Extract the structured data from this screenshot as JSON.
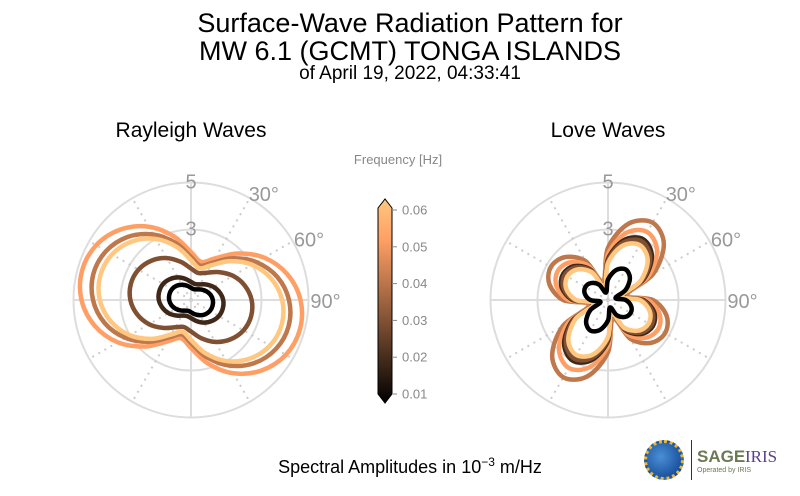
{
  "header": {
    "title_line1": "Surface-Wave Radiation Pattern for",
    "title_line2": "MW 6.1 (GCMT) TONGA ISLANDS",
    "title_line3": "of April 19, 2022, 04:33:41"
  },
  "footer": {
    "label_prefix": "Spectral Amplitudes in 10",
    "label_exp": "−3",
    "label_suffix": " m/Hz"
  },
  "logos": {
    "nsf": "NSF",
    "sage": "SAGE",
    "iris": "IRIS",
    "operated": "Operated by IRIS"
  },
  "colorbar": {
    "title": "Frequency [Hz]",
    "ticks": [
      "0.06",
      "0.05",
      "0.04",
      "0.03",
      "0.02",
      "0.01"
    ],
    "range": [
      0.01,
      0.06
    ],
    "colormap": "copper"
  },
  "chart_data": [
    {
      "type": "polar-line",
      "title": "Rayleigh Waves",
      "r_ticks": [
        "3",
        "5"
      ],
      "theta_ticks": [
        "30°",
        "60°",
        "90°"
      ],
      "rmax": 5,
      "theta_step_deg": 15,
      "theta_zero": "north",
      "theta_direction": "clockwise",
      "series": [
        {
          "name": "0.05",
          "color": "#ff9f65",
          "values": [
            2.04,
            1.68,
            2.04,
            2.8,
            3.6,
            4.24,
            4.66,
            4.8,
            4.66,
            4.24,
            3.6,
            2.8,
            2.04,
            1.68,
            2.04,
            2.8,
            3.6,
            4.24,
            4.66,
            4.8,
            4.66,
            4.24,
            3.6,
            2.8
          ]
        },
        {
          "name": "0.04",
          "color": "#bf784c",
          "values": [
            1.83,
            1.51,
            1.83,
            2.51,
            3.22,
            3.8,
            4.17,
            4.3,
            4.17,
            3.8,
            3.22,
            2.51,
            1.83,
            1.51,
            1.83,
            2.51,
            3.22,
            3.8,
            4.17,
            4.3,
            4.17,
            3.8,
            3.22,
            2.51
          ]
        },
        {
          "name": "0.06",
          "color": "#ffc77f",
          "values": [
            1.7,
            1.4,
            1.7,
            2.34,
            3.0,
            3.53,
            3.88,
            4.0,
            3.88,
            3.53,
            3.0,
            2.34,
            1.7,
            1.4,
            1.7,
            2.34,
            3.0,
            3.53,
            3.88,
            4.0,
            3.88,
            3.53,
            3.0,
            2.34
          ]
        },
        {
          "name": "0.03",
          "color": "#805033",
          "values": [
            1.34,
            1.19,
            1.34,
            1.68,
            2.06,
            2.37,
            2.58,
            2.65,
            2.58,
            2.37,
            2.06,
            1.68,
            1.34,
            1.19,
            1.34,
            1.68,
            2.06,
            2.37,
            2.58,
            2.65,
            2.58,
            2.37,
            2.06,
            1.68
          ]
        },
        {
          "name": "0.02",
          "color": "#402819",
          "values": [
            0.77,
            0.7,
            0.77,
            0.93,
            1.11,
            1.26,
            1.37,
            1.4,
            1.37,
            1.26,
            1.11,
            0.93,
            0.77,
            0.7,
            0.77,
            0.93,
            1.11,
            1.26,
            1.37,
            1.4,
            1.37,
            1.26,
            1.11,
            0.93
          ]
        },
        {
          "name": "0.01",
          "color": "#000000",
          "values": [
            0.52,
            0.475,
            0.52,
            0.63,
            0.75,
            0.86,
            0.93,
            0.95,
            0.93,
            0.86,
            0.75,
            0.63,
            0.52,
            0.475,
            0.52,
            0.63,
            0.75,
            0.86,
            0.93,
            0.95,
            0.93,
            0.86,
            0.75,
            0.63
          ]
        }
      ]
    },
    {
      "type": "polar-line",
      "title": "Love Waves",
      "r_ticks": [
        "3",
        "5"
      ],
      "theta_ticks": [
        "30°",
        "60°",
        "90°"
      ],
      "rmax": 5,
      "theta_step_deg": 15,
      "theta_zero": "north",
      "theta_direction": "clockwise",
      "series": [
        {
          "name": "0.04",
          "color": "#bf784c",
          "values": [
            2.22,
            3.36,
            3.8,
            3.36,
            2.22,
            0.83,
            1.91,
            2.58,
            2.81,
            2.58,
            1.91,
            0.83,
            2.22,
            3.36,
            3.8,
            3.36,
            2.22,
            0.83,
            1.91,
            2.58,
            2.81,
            2.58,
            1.91,
            0.83
          ]
        },
        {
          "name": "0.05",
          "color": "#ff9f65",
          "values": [
            1.95,
            2.95,
            3.34,
            2.95,
            1.95,
            0.73,
            1.68,
            2.27,
            2.47,
            2.27,
            1.68,
            0.73,
            1.95,
            2.95,
            3.34,
            2.95,
            1.95,
            0.73,
            1.68,
            2.27,
            2.47,
            2.27,
            1.68,
            0.73
          ]
        },
        {
          "name": "0.02",
          "color": "#402819",
          "values": [
            1.75,
            2.64,
            2.99,
            2.64,
            1.75,
            0.65,
            1.5,
            2.04,
            2.21,
            2.04,
            1.5,
            0.65,
            1.75,
            2.64,
            2.99,
            2.64,
            1.75,
            0.65,
            1.5,
            2.04,
            2.21,
            2.04,
            1.5,
            0.65
          ]
        },
        {
          "name": "0.03",
          "color": "#805033",
          "values": [
            1.68,
            2.54,
            2.88,
            2.54,
            1.68,
            0.63,
            1.45,
            1.96,
            2.13,
            1.96,
            1.45,
            0.63,
            1.68,
            2.54,
            2.88,
            2.54,
            1.68,
            0.63,
            1.45,
            1.96,
            2.13,
            1.96,
            1.45,
            0.63
          ]
        },
        {
          "name": "0.06",
          "color": "#ffc77f",
          "values": [
            1.58,
            2.39,
            2.7,
            2.39,
            1.58,
            0.59,
            1.36,
            1.84,
            2.0,
            1.84,
            1.36,
            0.59,
            1.58,
            2.39,
            2.7,
            2.39,
            1.58,
            0.59,
            1.36,
            1.84,
            2.0,
            1.84,
            1.36,
            0.59
          ]
        },
        {
          "name": "0.01",
          "color": "#000000",
          "values": [
            0.87,
            1.32,
            1.5,
            1.32,
            0.87,
            0.33,
            0.75,
            1.02,
            1.11,
            1.02,
            0.75,
            0.33,
            0.87,
            1.32,
            1.5,
            1.32,
            0.87,
            0.33,
            0.75,
            1.02,
            1.11,
            1.02,
            0.75,
            0.33
          ]
        }
      ]
    }
  ]
}
